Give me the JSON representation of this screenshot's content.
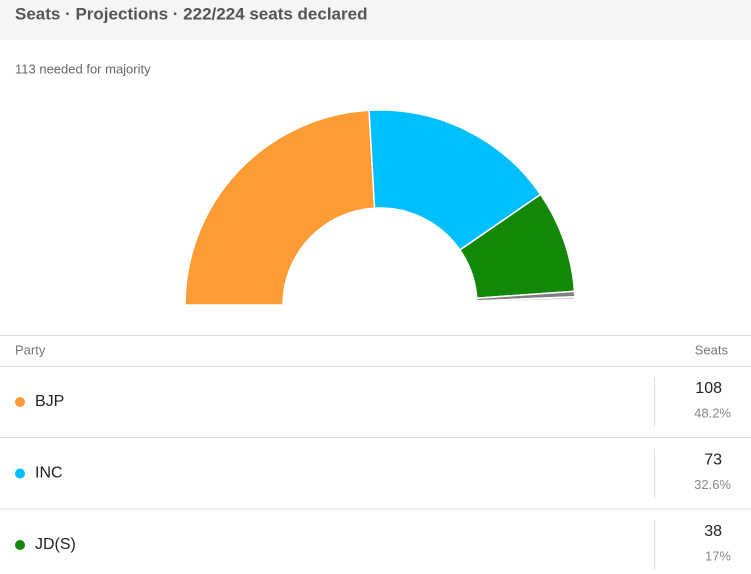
{
  "chart_data": {
    "type": "pie",
    "title": "Seats · Projections · 222/224 seats declared",
    "subtitle": "113 needed for majority",
    "half_donut": true,
    "scale_total": 224,
    "categories": [
      "BJP",
      "INC",
      "JD(S)",
      null,
      null
    ],
    "values": [
      108,
      73,
      38,
      2,
      1
    ],
    "shares": [
      "48.2%",
      "32.6%",
      "17%",
      null,
      null
    ],
    "colors": [
      "#fd9b35",
      "#00bfff",
      "#138808",
      "#808080",
      "#d3d3d3"
    ],
    "table_headers": [
      "Party",
      "Seats"
    ]
  }
}
